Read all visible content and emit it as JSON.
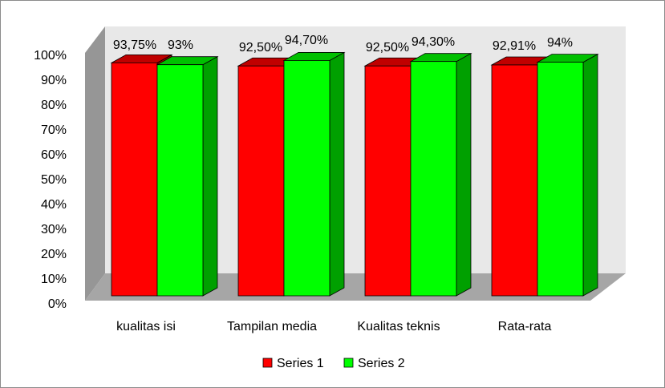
{
  "chart_data": {
    "type": "bar",
    "variant": "3d-clustered-column",
    "categories": [
      "kualitas isi",
      "Tampilan media",
      "Kualitas teknis",
      "Rata-rata"
    ],
    "series": [
      {
        "name": "Series 1",
        "values": [
          93.75,
          92.5,
          92.5,
          92.91
        ],
        "labels": [
          "93,75%",
          "92,50%",
          "92,50%",
          "92,91%"
        ],
        "color": "#ff0000",
        "top_color": "#c00000",
        "side_color": "#a00000"
      },
      {
        "name": "Series 2",
        "values": [
          93,
          94.7,
          94.3,
          94
        ],
        "labels": [
          "93%",
          "94,70%",
          "94,30%",
          "94%"
        ],
        "color": "#00ff00",
        "top_color": "#00c000",
        "side_color": "#00a000"
      }
    ],
    "y_tick_labels": [
      "0%",
      "10%",
      "20%",
      "30%",
      "40%",
      "50%",
      "60%",
      "70%",
      "80%",
      "90%",
      "100%"
    ],
    "ylim": [
      0,
      100
    ],
    "grid": false,
    "legend_position": "bottom",
    "back_wall_color": "#e8e8e8",
    "side_wall_color": "#969696",
    "floor_color": "#a6a6a6"
  }
}
